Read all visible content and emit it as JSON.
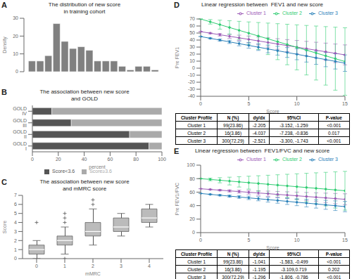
{
  "chart_data": [
    {
      "type": "histogram",
      "panel": "A",
      "title": "The distribution of new score\nin training cohort",
      "x_label": "Score",
      "y_label": "Density",
      "bins": [
        0,
        1,
        2,
        3,
        4,
        5,
        6,
        7,
        8,
        9,
        10,
        11,
        12,
        13,
        14,
        15,
        16
      ],
      "values": [
        6,
        6,
        9,
        27,
        17,
        13,
        14,
        12,
        6,
        6,
        6,
        3,
        1,
        3,
        3,
        1
      ],
      "color": "#808080",
      "xlim": [
        -0.5,
        16.5
      ],
      "xticks": [
        0,
        5,
        10,
        15
      ],
      "ylim": [
        0,
        30
      ],
      "yticks": [
        0,
        10,
        20,
        30
      ],
      "grid": false
    },
    {
      "type": "bar",
      "panel": "B",
      "title": "The association between new score\nand GOLD",
      "x_label": "percent",
      "categories": [
        "GOLD I",
        "GOLD II",
        "GOLD III",
        "GOLD IV"
      ],
      "series": [
        {
          "name": "Score<3.6",
          "color": "#555555",
          "values": [
            90,
            75,
            30,
            15
          ]
        },
        {
          "name": "Score≥3.6",
          "color": "#aaaaaa",
          "values": [
            10,
            25,
            70,
            85
          ]
        }
      ],
      "orientation": "horizontal",
      "stacked": true,
      "xlim": [
        0,
        100
      ],
      "xticks": [
        0,
        20,
        40,
        60,
        80,
        100
      ],
      "legend": "lower center",
      "grid": false
    },
    {
      "type": "box",
      "panel": "C",
      "title": "The association between new score\nand mMRC score",
      "x_label": "mMRC",
      "y_label": "Score",
      "categories": [
        "0",
        "1",
        "2",
        "3",
        "4"
      ],
      "boxes": [
        {
          "med": 1.0,
          "q1": 0.5,
          "q3": 1.5,
          "whislo": 0.0,
          "whishi": 2.0,
          "fliers": [
            4.0
          ]
        },
        {
          "med": 2.0,
          "q1": 1.5,
          "q3": 2.5,
          "whislo": 0.5,
          "whishi": 3.5,
          "fliers": [
            4.0,
            4.5,
            5.0,
            0.0
          ]
        },
        {
          "med": 3.0,
          "q1": 2.5,
          "q3": 4.0,
          "whislo": 1.5,
          "whishi": 5.5,
          "fliers": [
            6.0,
            6.5
          ]
        },
        {
          "med": 3.5,
          "q1": 3.0,
          "q3": 4.5,
          "whislo": 2.5,
          "whishi": 5.0,
          "fliers": []
        },
        {
          "med": 4.5,
          "q1": 4.0,
          "q3": 5.5,
          "whislo": 3.5,
          "whishi": 6.0,
          "fliers": []
        }
      ],
      "color": "#bbbbbb",
      "marker": "plus",
      "ylim": [
        0,
        7
      ],
      "yticks": [
        0,
        1,
        2,
        3,
        4,
        5,
        6,
        7
      ],
      "grid": false
    },
    {
      "type": "line",
      "panel": "D",
      "title": "Linear regression between  FEV1 and new score",
      "x_label": "Score",
      "y_label": "Pre FEV1",
      "x": [
        0,
        1,
        2,
        3,
        4,
        5,
        6,
        7,
        8,
        9,
        10,
        11,
        12,
        13,
        14,
        15
      ],
      "series": [
        {
          "name": "Cluster 1",
          "color": "#9b59b6",
          "values": [
            52,
            49.795,
            47.59,
            45.385,
            43.18,
            40.975,
            38.77,
            36.565,
            34.36,
            32.155,
            29.95,
            27.745,
            25.54,
            23.335,
            21.13,
            18.925
          ],
          "error_minus": [
            0,
            0.947,
            1.894,
            2.841,
            3.788,
            4.735,
            5.682,
            6.629,
            7.576,
            8.523,
            9.47,
            10.417,
            11.364,
            12.311,
            13.258,
            14.205
          ],
          "error_plus": [
            0,
            0.946,
            1.892,
            2.838,
            3.784,
            4.73,
            5.676,
            6.622,
            7.568,
            8.514,
            9.46,
            10.406,
            11.352,
            12.298,
            13.244,
            14.19
          ]
        },
        {
          "name": "Cluster 2",
          "color": "#2ecc71",
          "values": [
            70,
            65.963,
            61.926,
            57.889,
            53.852,
            49.815,
            45.778,
            41.741,
            37.704,
            33.667,
            29.63,
            25.593,
            21.556,
            17.519,
            13.482,
            9.445
          ],
          "error_minus": [
            0,
            3.201,
            6.402,
            9.603,
            12.804,
            16.005,
            19.206,
            22.407,
            25.608,
            28.809,
            32.01,
            35.211,
            38.412,
            41.613,
            44.814,
            48.015
          ],
          "error_plus": [
            0,
            3.201,
            6.402,
            9.603,
            12.804,
            16.005,
            19.206,
            22.407,
            25.608,
            28.809,
            32.01,
            35.211,
            38.412,
            41.613,
            44.814,
            48.015
          ]
        },
        {
          "name": "Cluster 3",
          "color": "#2980b9",
          "values": [
            45,
            42.479,
            39.958,
            37.437,
            34.916,
            32.395,
            29.874,
            27.353,
            24.832,
            22.311,
            19.79,
            17.269,
            14.748,
            12.227,
            9.706,
            7.185
          ],
          "error_minus": [
            0,
            0.779,
            1.558,
            2.337,
            3.116,
            3.895,
            4.674,
            5.453,
            6.232,
            7.011,
            7.79,
            8.569,
            9.348,
            10.127,
            10.906,
            11.685
          ],
          "error_plus": [
            0,
            0.778,
            1.556,
            2.334,
            3.112,
            3.89,
            4.668,
            5.446,
            6.224,
            7.002,
            7.78,
            8.558,
            9.336,
            10.114,
            10.892,
            11.67
          ]
        }
      ],
      "marker": "circle",
      "xlim": [
        0,
        15
      ],
      "xticks": [
        0,
        5,
        10,
        15
      ],
      "ylim": [
        -40,
        70
      ],
      "yticks": [
        -40,
        -30,
        -20,
        -10,
        0,
        10,
        20,
        30,
        40,
        50,
        60,
        70
      ],
      "legend": "upper right",
      "grid": false,
      "table": {
        "headers": [
          "Cluster Profile",
          "N (%)",
          "dy/dx",
          "95%CI",
          "P-value"
        ],
        "rows": [
          [
            "Cluster 1",
            "99(23.86)",
            "-2.205",
            "-3.152, -1.259",
            "<0.001"
          ],
          [
            "Cluster 2",
            "16(3.86)",
            "-4.037",
            "-7.238, -0.836",
            "0.017"
          ],
          [
            "Cluster 3",
            "300(72.29)",
            "-2.521",
            "-3.300, -1.743",
            "<0.001"
          ]
        ]
      }
    },
    {
      "type": "line",
      "panel": "E",
      "title": "Linear regression between  FEV1/FVC and new score",
      "x_label": "Score",
      "y_label": "Pre FEV1/FVC",
      "x": [
        0,
        1,
        2,
        3,
        4,
        5,
        6,
        7,
        8,
        9,
        10,
        11,
        12,
        13,
        14,
        15
      ],
      "series": [
        {
          "name": "Cluster 1",
          "color": "#9b59b6",
          "values": [
            65,
            63.959,
            62.918,
            61.877,
            60.836,
            59.795,
            58.754,
            57.713,
            56.672,
            55.631,
            54.59,
            53.549,
            52.508,
            51.467,
            50.426,
            49.385
          ],
          "error_minus": [
            0,
            0.542,
            1.084,
            1.626,
            2.168,
            2.71,
            3.252,
            3.794,
            4.336,
            4.878,
            5.42,
            5.962,
            6.504,
            7.046,
            7.588,
            8.13
          ],
          "error_plus": [
            0,
            0.542,
            1.084,
            1.626,
            2.168,
            2.71,
            3.252,
            3.794,
            4.336,
            4.878,
            5.42,
            5.962,
            6.504,
            7.046,
            7.588,
            8.13
          ]
        },
        {
          "name": "Cluster 2",
          "color": "#2ecc71",
          "values": [
            80,
            78.805,
            77.61,
            76.415,
            75.22,
            74.025,
            72.83,
            71.635,
            70.44,
            69.245,
            68.05,
            66.855,
            65.66,
            64.465,
            63.27,
            62.075
          ],
          "error_minus": [
            0,
            1.914,
            3.828,
            5.742,
            7.656,
            9.57,
            11.484,
            13.398,
            15.312,
            17.226,
            19.14,
            21.054,
            22.968,
            24.882,
            26.796,
            28.71
          ],
          "error_plus": [
            0,
            1.914,
            3.828,
            5.742,
            7.656,
            9.57,
            11.484,
            13.398,
            15.312,
            17.226,
            19.14,
            21.054,
            22.968,
            24.882,
            26.796,
            28.71
          ]
        },
        {
          "name": "Cluster 3",
          "color": "#2980b9",
          "values": [
            58,
            56.704,
            55.408,
            54.112,
            52.816,
            51.52,
            50.224,
            48.928,
            47.632,
            46.336,
            45.04,
            43.744,
            42.448,
            41.152,
            39.856,
            38.56
          ],
          "error_minus": [
            0,
            0.51,
            1.02,
            1.53,
            2.04,
            2.55,
            3.06,
            3.57,
            4.08,
            4.59,
            5.1,
            5.61,
            6.12,
            6.63,
            7.14,
            7.65
          ],
          "error_plus": [
            0,
            0.51,
            1.02,
            1.53,
            2.04,
            2.55,
            3.06,
            3.57,
            4.08,
            4.59,
            5.1,
            5.61,
            6.12,
            6.63,
            7.14,
            7.65
          ]
        }
      ],
      "marker": "circle",
      "xlim": [
        0,
        15
      ],
      "xticks": [
        0,
        5,
        10,
        15
      ],
      "ylim": [
        0,
        100
      ],
      "yticks": [
        0,
        20,
        40,
        60,
        80,
        100
      ],
      "legend": "upper right",
      "grid": false,
      "table": {
        "headers": [
          "Cluster Profile",
          "N (%)",
          "dy/dx",
          "95%CI",
          "P-value"
        ],
        "rows": [
          [
            "Cluster 1",
            "99(23.86)",
            "-1.041",
            "-1.583, -0.499",
            "<0.001"
          ],
          [
            "Cluster 2",
            "16(3.86)",
            "-1.195",
            "-3.109,0.719",
            "0.202"
          ],
          [
            "Cluster 3",
            "300(72.29)",
            "-1.296",
            "-1.806, -0.786",
            "<0.001"
          ]
        ]
      }
    }
  ]
}
